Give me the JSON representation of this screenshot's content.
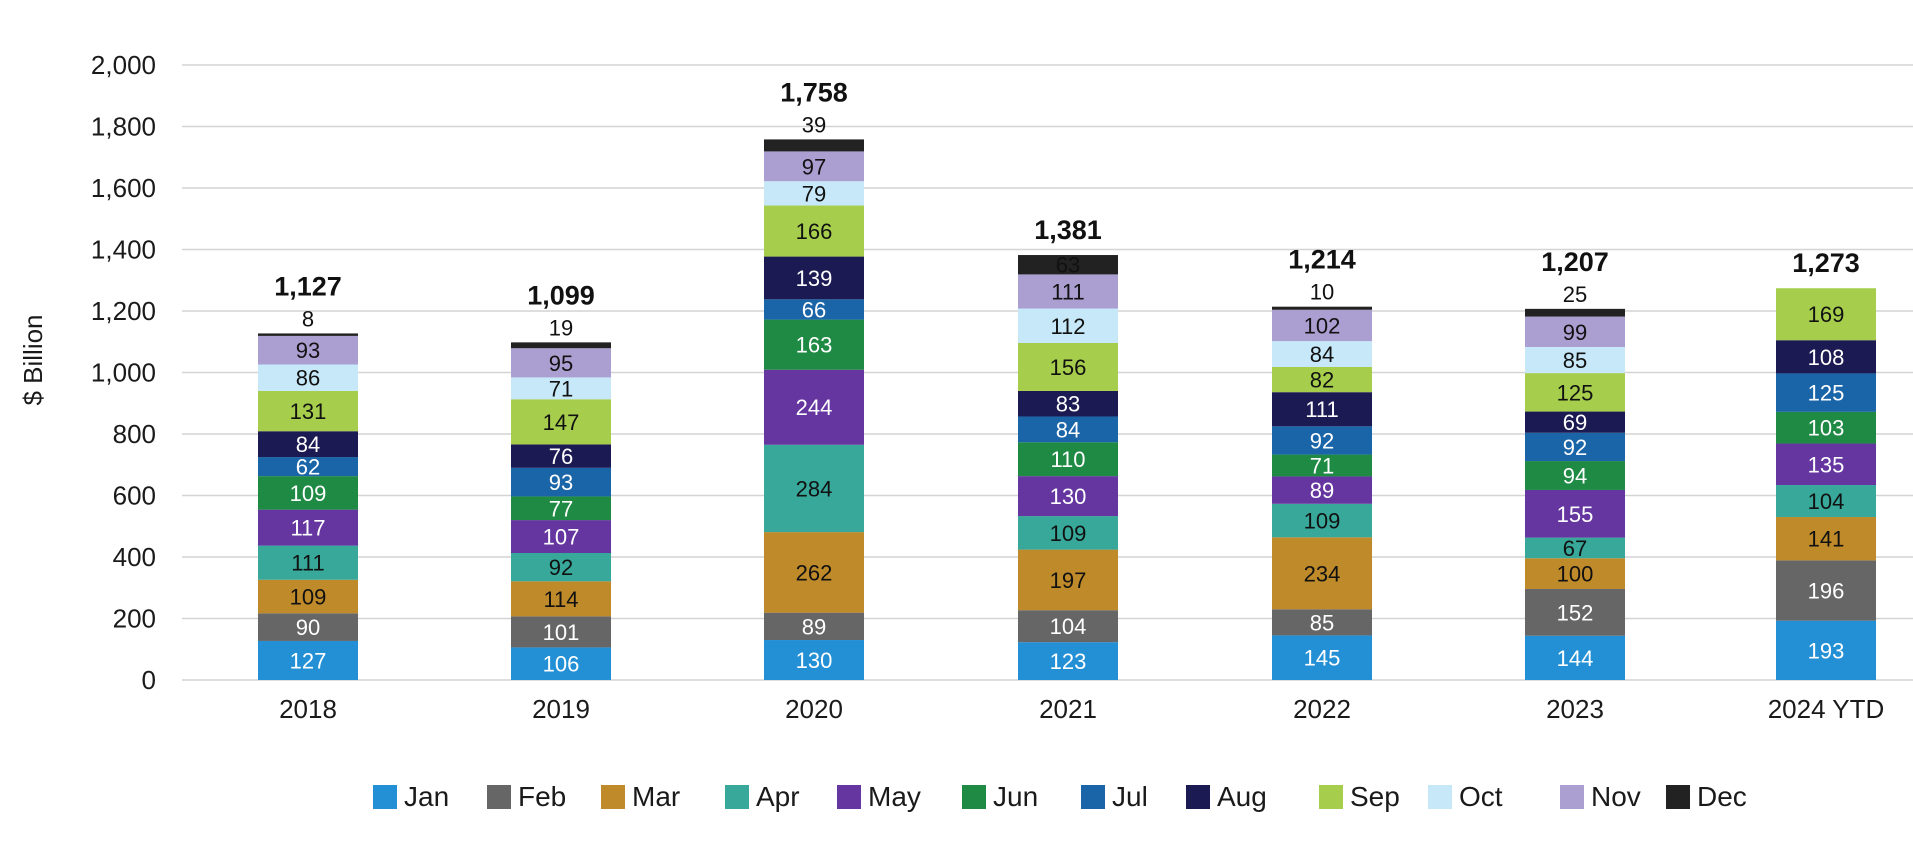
{
  "chart_data": {
    "type": "bar",
    "stacked": true,
    "title": "",
    "xlabel": "",
    "ylabel": "$ Billion",
    "ylim": [
      0,
      2000
    ],
    "yticks": [
      0,
      200,
      400,
      600,
      800,
      1000,
      1200,
      1400,
      1600,
      1800,
      2000
    ],
    "ytick_labels": [
      "0",
      "200",
      "400",
      "600",
      "800",
      "1,000",
      "1,200",
      "1,400",
      "1,600",
      "1,800",
      "2,000"
    ],
    "grid": true,
    "legend_position": "bottom",
    "categories": [
      "2018",
      "2019",
      "2020",
      "2021",
      "2022",
      "2023",
      "2024 YTD"
    ],
    "totals": [
      "1,127",
      "1,099",
      "1,758",
      "1,381",
      "1,214",
      "1,207",
      "1,273"
    ],
    "series": [
      {
        "name": "Jan",
        "color": "#2390d6",
        "label_color": "#ffffff",
        "values": [
          127,
          106,
          130,
          123,
          145,
          144,
          193
        ]
      },
      {
        "name": "Feb",
        "color": "#666666",
        "label_color": "#ffffff",
        "values": [
          90,
          101,
          89,
          104,
          85,
          152,
          196
        ]
      },
      {
        "name": "Mar",
        "color": "#bf8a2a",
        "label_color": "#111111",
        "values": [
          109,
          114,
          262,
          197,
          234,
          100,
          141
        ]
      },
      {
        "name": "Apr",
        "color": "#37a89a",
        "label_color": "#111111",
        "values": [
          111,
          92,
          284,
          109,
          109,
          67,
          104
        ]
      },
      {
        "name": "May",
        "color": "#6535a0",
        "label_color": "#ffffff",
        "values": [
          117,
          107,
          244,
          130,
          89,
          155,
          135
        ]
      },
      {
        "name": "Jun",
        "color": "#1f8a44",
        "label_color": "#ffffff",
        "values": [
          109,
          77,
          163,
          110,
          71,
          94,
          103
        ]
      },
      {
        "name": "Jul",
        "color": "#1a64a8",
        "label_color": "#ffffff",
        "values": [
          62,
          93,
          66,
          84,
          92,
          92,
          125
        ]
      },
      {
        "name": "Aug",
        "color": "#1c1a52",
        "label_color": "#ffffff",
        "values": [
          84,
          76,
          139,
          83,
          111,
          69,
          108
        ]
      },
      {
        "name": "Sep",
        "color": "#a6ce4c",
        "label_color": "#111111",
        "values": [
          131,
          147,
          166,
          156,
          82,
          125,
          169
        ]
      },
      {
        "name": "Oct",
        "color": "#c6e8f8",
        "label_color": "#111111",
        "values": [
          86,
          71,
          79,
          112,
          84,
          85,
          null
        ]
      },
      {
        "name": "Nov",
        "color": "#ab9fd2",
        "label_color": "#111111",
        "values": [
          93,
          95,
          97,
          111,
          102,
          99,
          null
        ]
      },
      {
        "name": "Dec",
        "color": "#222222",
        "label_color": "#111111",
        "values": [
          8,
          19,
          39,
          63,
          10,
          25,
          null
        ]
      }
    ]
  }
}
